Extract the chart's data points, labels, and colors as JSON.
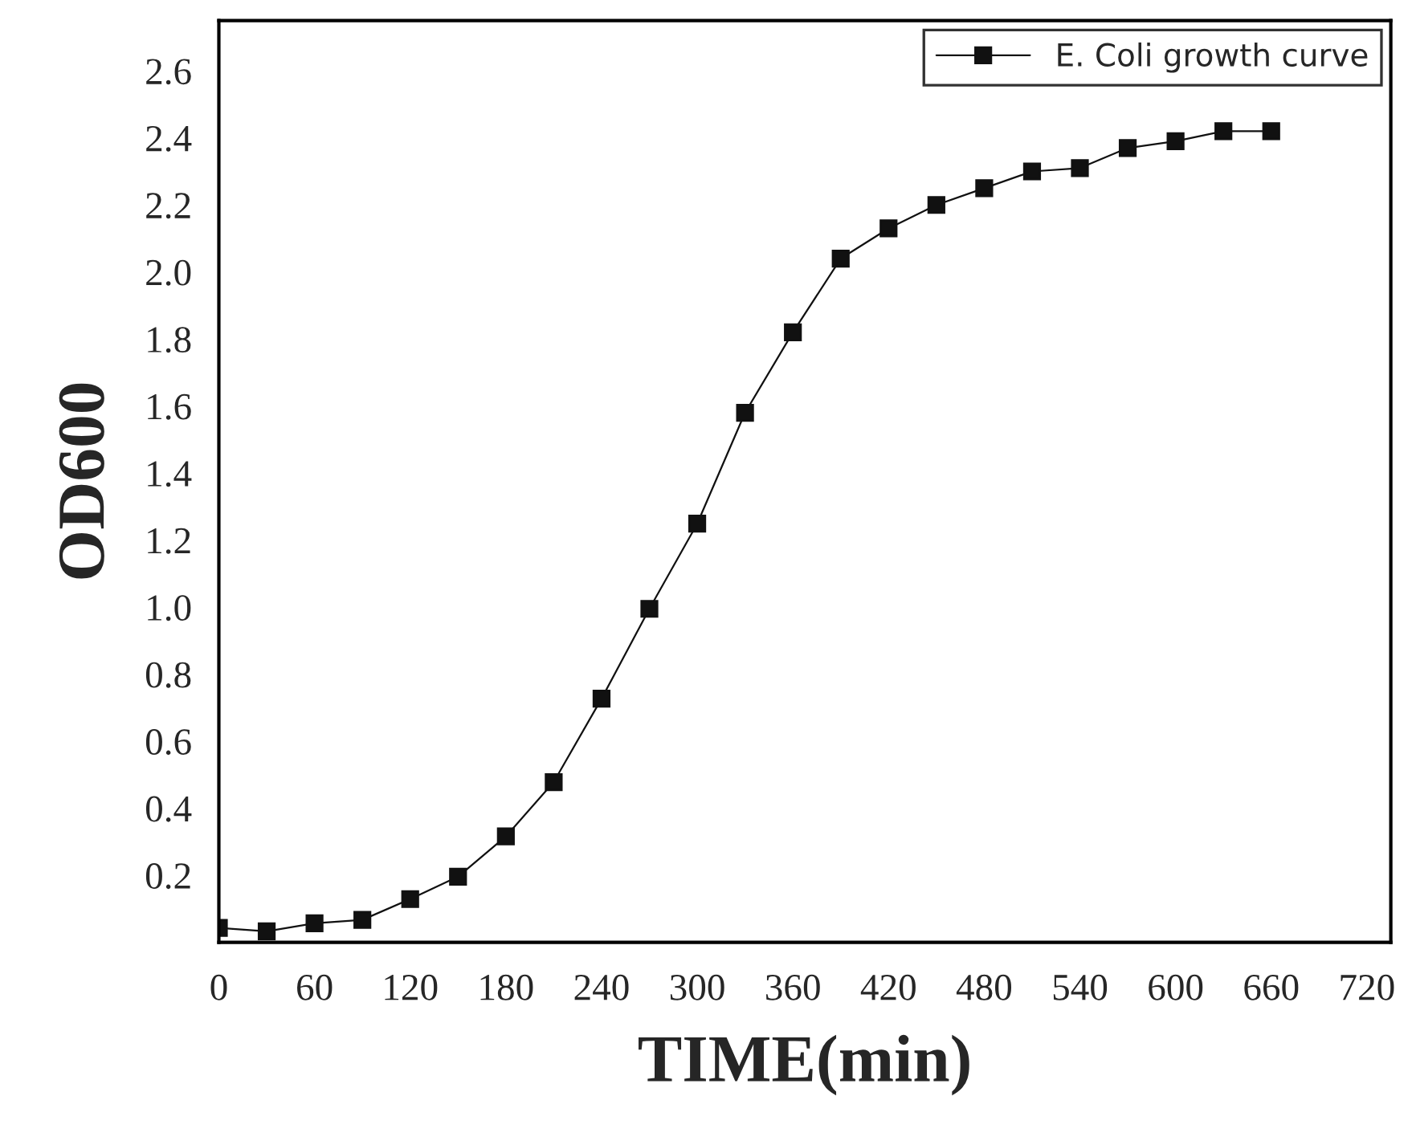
{
  "chart_data": {
    "type": "line",
    "xlabel": "TIME(min)",
    "ylabel": "OD600",
    "x": [
      0,
      30,
      60,
      90,
      120,
      150,
      180,
      210,
      240,
      270,
      300,
      330,
      360,
      390,
      420,
      450,
      480,
      510,
      540,
      570,
      600,
      630,
      660
    ],
    "series": [
      {
        "name": "E. Coli growth curve",
        "color": "#111111",
        "values": [
          0.043,
          0.033,
          0.057,
          0.067,
          0.129,
          0.196,
          0.316,
          0.478,
          0.727,
          0.995,
          1.249,
          1.58,
          1.82,
          2.04,
          2.13,
          2.2,
          2.25,
          2.3,
          2.31,
          2.37,
          2.39,
          2.42,
          2.42
        ]
      }
    ],
    "xlim": [
      0,
      735
    ],
    "xticks": [
      0,
      60,
      120,
      180,
      240,
      300,
      360,
      420,
      480,
      540,
      600,
      660,
      720
    ],
    "ylim": [
      0,
      2.75
    ],
    "yticks": [
      {
        "value": 0.2,
        "label": "0.2"
      },
      {
        "value": 0.4,
        "label": "0.4"
      },
      {
        "value": 0.6,
        "label": "0.6"
      },
      {
        "value": 0.8,
        "label": "0.8"
      },
      {
        "value": 1.0,
        "label": "1.0"
      },
      {
        "value": 1.2,
        "label": "1.2"
      },
      {
        "value": 1.4,
        "label": "1.4"
      },
      {
        "value": 1.6,
        "label": "1.6"
      },
      {
        "value": 1.8,
        "label": "1.8"
      },
      {
        "value": 2.0,
        "label": "2.0"
      },
      {
        "value": 2.2,
        "label": "2.2"
      },
      {
        "value": 2.4,
        "label": "2.4"
      },
      {
        "value": 2.6,
        "label": "2.6"
      }
    ],
    "marker": "square",
    "line_style": "solid",
    "grid": false,
    "legend": "top right"
  }
}
